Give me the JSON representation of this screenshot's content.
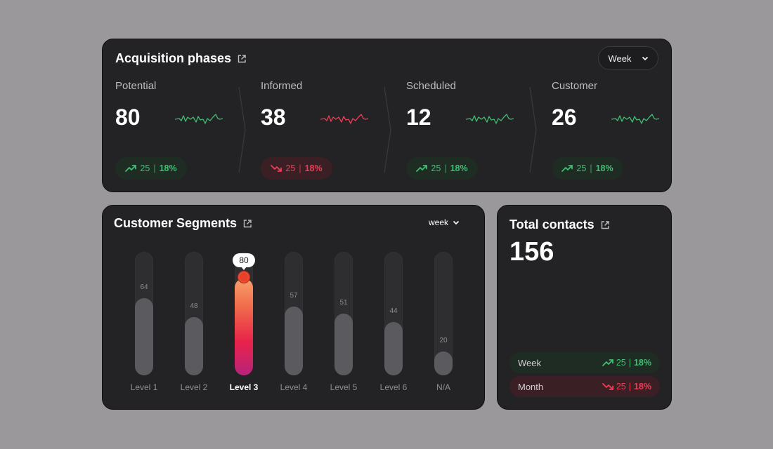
{
  "colors": {
    "up": "#3fbf73",
    "down": "#ef3d57",
    "active_bar_top": "#f8a06a",
    "active_bar_bottom": "#b8237a"
  },
  "acquisition": {
    "title": "Acquisition phases",
    "title_icon": "external-link-icon",
    "period_select": "Week",
    "phases": [
      {
        "label": "Potential",
        "value": "80",
        "trend": "up",
        "delta": "25",
        "percent": "18%"
      },
      {
        "label": "Informed",
        "value": "38",
        "trend": "down",
        "delta": "25",
        "percent": "18%"
      },
      {
        "label": "Scheduled",
        "value": "12",
        "trend": "up",
        "delta": "25",
        "percent": "18%"
      },
      {
        "label": "Customer",
        "value": "26",
        "trend": "up",
        "delta": "25",
        "percent": "18%"
      }
    ]
  },
  "segments": {
    "title": "Customer Segments",
    "title_icon": "external-link-icon",
    "period_select": "week",
    "active_index": 2,
    "bars": [
      {
        "label": "Level 1",
        "value": 64
      },
      {
        "label": "Level 2",
        "value": 48
      },
      {
        "label": "Level 3",
        "value": 80
      },
      {
        "label": "Level 4",
        "value": 57
      },
      {
        "label": "Level 5",
        "value": 51
      },
      {
        "label": "Level 6",
        "value": 44
      },
      {
        "label": "N/A",
        "value": 20
      }
    ]
  },
  "total_contacts": {
    "title": "Total contacts",
    "title_icon": "external-link-icon",
    "value": "156",
    "rows": [
      {
        "label": "Week",
        "trend": "up",
        "delta": "25",
        "percent": "18%"
      },
      {
        "label": "Month",
        "trend": "down",
        "delta": "25",
        "percent": "18%"
      }
    ]
  }
}
